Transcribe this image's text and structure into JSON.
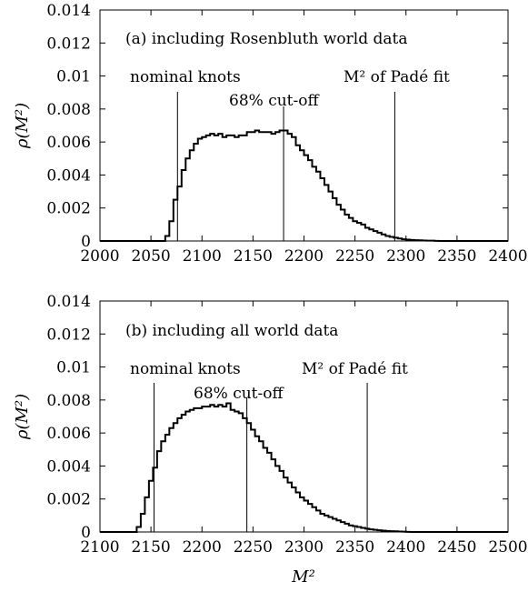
{
  "chart_data": [
    {
      "type": "histogram",
      "panel_label": "(a) including Rosenbluth world data",
      "xlabel": "",
      "ylabel": "ρ(M²)",
      "xlim": [
        2000,
        2400
      ],
      "ylim": [
        0,
        0.014
      ],
      "x_ticks": [
        "2000",
        "2050",
        "2100",
        "2150",
        "2200",
        "2250",
        "2300",
        "2350",
        "2400"
      ],
      "y_ticks": [
        "0",
        "0.002",
        "0.004",
        "0.006",
        "0.008",
        "0.01",
        "0.012",
        "0.014"
      ],
      "x_tick_values": [
        2000,
        2050,
        2100,
        2150,
        2200,
        2250,
        2300,
        2350,
        2400
      ],
      "y_tick_values": [
        0,
        0.002,
        0.004,
        0.006,
        0.008,
        0.01,
        0.012,
        0.014
      ],
      "bins": {
        "x": [
          2064,
          2068,
          2072,
          2076,
          2080,
          2084,
          2088,
          2092,
          2096,
          2100,
          2104,
          2108,
          2112,
          2116,
          2120,
          2124,
          2128,
          2132,
          2136,
          2140,
          2144,
          2148,
          2152,
          2156,
          2160,
          2164,
          2168,
          2172,
          2176,
          2180,
          2184,
          2188,
          2192,
          2196,
          2200,
          2204,
          2208,
          2212,
          2216,
          2220,
          2224,
          2228,
          2232,
          2236,
          2240,
          2244,
          2248,
          2252,
          2256,
          2260,
          2264,
          2268,
          2272,
          2276,
          2280,
          2284,
          2288,
          2292,
          2296,
          2300,
          2304,
          2308,
          2312,
          2316,
          2320,
          2324,
          2328
        ],
        "values": [
          0.0003,
          0.0012,
          0.0025,
          0.0033,
          0.0043,
          0.005,
          0.0055,
          0.0059,
          0.0062,
          0.0063,
          0.0064,
          0.0065,
          0.0064,
          0.0065,
          0.0063,
          0.0064,
          0.0064,
          0.0063,
          0.0064,
          0.0064,
          0.0066,
          0.0066,
          0.0067,
          0.0066,
          0.0066,
          0.0066,
          0.0065,
          0.0066,
          0.0067,
          0.0067,
          0.0065,
          0.0063,
          0.0058,
          0.0055,
          0.0052,
          0.0049,
          0.0045,
          0.0042,
          0.0038,
          0.0034,
          0.003,
          0.0026,
          0.0022,
          0.0019,
          0.0016,
          0.0014,
          0.0012,
          0.0011,
          0.001,
          0.0008,
          0.0007,
          0.0006,
          0.0005,
          0.0004,
          0.0003,
          0.00025,
          0.0002,
          0.00015,
          0.0001,
          8e-05,
          6e-05,
          5e-05,
          4e-05,
          3e-05,
          2e-05,
          2e-05,
          1e-05
        ],
        "bin_width": 4
      },
      "vertical_lines": [
        {
          "x": 2076,
          "label": "nominal knots"
        },
        {
          "x": 2180,
          "label": "68% cut-off"
        },
        {
          "x": 2289,
          "label": "M² of Padé fit"
        }
      ],
      "grid": false
    },
    {
      "type": "histogram",
      "panel_label": "(b) including all world data",
      "xlabel": "M²",
      "ylabel": "ρ(M²)",
      "xlim": [
        2100,
        2500
      ],
      "ylim": [
        0,
        0.014
      ],
      "x_ticks": [
        "2100",
        "2150",
        "2200",
        "2250",
        "2300",
        "2350",
        "2400",
        "2450",
        "2500"
      ],
      "y_ticks": [
        "0",
        "0.002",
        "0.004",
        "0.006",
        "0.008",
        "0.01",
        "0.012",
        "0.014"
      ],
      "x_tick_values": [
        2100,
        2150,
        2200,
        2250,
        2300,
        2350,
        2400,
        2450,
        2500
      ],
      "y_tick_values": [
        0,
        0.002,
        0.004,
        0.006,
        0.008,
        0.01,
        0.012,
        0.014
      ],
      "bins": {
        "x": [
          2136,
          2140,
          2144,
          2148,
          2152,
          2156,
          2160,
          2164,
          2168,
          2172,
          2176,
          2180,
          2184,
          2188,
          2192,
          2196,
          2200,
          2204,
          2208,
          2212,
          2216,
          2220,
          2224,
          2228,
          2232,
          2236,
          2240,
          2244,
          2248,
          2252,
          2256,
          2260,
          2264,
          2268,
          2272,
          2276,
          2280,
          2284,
          2288,
          2292,
          2296,
          2300,
          2304,
          2308,
          2312,
          2316,
          2320,
          2324,
          2328,
          2332,
          2336,
          2340,
          2344,
          2348,
          2352,
          2356,
          2360,
          2364,
          2368,
          2372,
          2376,
          2380,
          2384,
          2388,
          2392,
          2396,
          2400
        ],
        "values": [
          0.0003,
          0.0011,
          0.0021,
          0.0031,
          0.0039,
          0.0049,
          0.0055,
          0.0059,
          0.0063,
          0.0066,
          0.0069,
          0.0071,
          0.0073,
          0.0074,
          0.0075,
          0.0075,
          0.0076,
          0.0076,
          0.0077,
          0.0076,
          0.0077,
          0.0076,
          0.0078,
          0.0074,
          0.0073,
          0.0072,
          0.0069,
          0.0066,
          0.0062,
          0.0058,
          0.0055,
          0.0051,
          0.0048,
          0.0044,
          0.004,
          0.0037,
          0.0033,
          0.003,
          0.0027,
          0.0024,
          0.0021,
          0.0019,
          0.0017,
          0.0015,
          0.0013,
          0.0011,
          0.001,
          0.0009,
          0.0008,
          0.0007,
          0.0006,
          0.0005,
          0.0004,
          0.00035,
          0.0003,
          0.00025,
          0.0002,
          0.00016,
          0.00013,
          0.0001,
          8e-05,
          6e-05,
          5e-05,
          4e-05,
          3e-05,
          2e-05,
          1e-05
        ],
        "bin_width": 4
      },
      "vertical_lines": [
        {
          "x": 2153,
          "label": "nominal knots"
        },
        {
          "x": 2244,
          "label": "68% cut-off"
        },
        {
          "x": 2362,
          "label": "M² of Padé fit"
        }
      ],
      "grid": false
    }
  ]
}
